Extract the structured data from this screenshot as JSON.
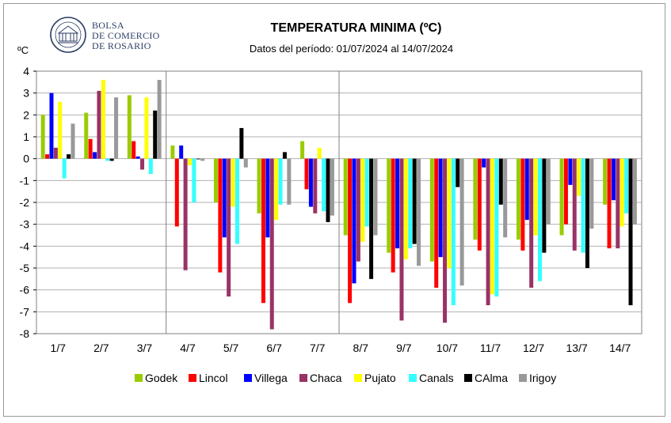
{
  "logo": {
    "line1": "BOLSA",
    "line2": "DE COMERCIO",
    "line3": "DE ROSARIO"
  },
  "chart_data": {
    "type": "bar",
    "title": "TEMPERATURA MINIMA (ºC)",
    "subtitle": "Datos del período: 01/07/2024 al 14/07/2024",
    "ylabel": "ºC",
    "xlabel": "",
    "ylim": [
      -8,
      4
    ],
    "yticks": [
      4,
      3,
      2,
      1,
      0,
      -1,
      -2,
      -3,
      -4,
      -5,
      -6,
      -7,
      -8
    ],
    "grid": true,
    "legend_position": "bottom",
    "categories": [
      "1/7",
      "2/7",
      "3/7",
      "4/7",
      "5/7",
      "6/7",
      "7/7",
      "8/7",
      "9/7",
      "10/7",
      "11/7",
      "12/7",
      "13/7",
      "14/7"
    ],
    "series": [
      {
        "name": "Godek",
        "color": "#99cc00",
        "values": [
          2.0,
          2.1,
          2.9,
          0.6,
          -2.0,
          -2.5,
          0.8,
          -3.5,
          -4.3,
          -4.7,
          -3.7,
          -3.7,
          -3.5,
          -2.1
        ]
      },
      {
        "name": "Lincol",
        "color": "#ff0000",
        "values": [
          0.2,
          0.9,
          0.8,
          -3.1,
          -5.2,
          -6.6,
          -1.4,
          -6.6,
          -5.2,
          -5.9,
          -4.2,
          -4.2,
          -3.0,
          -4.1
        ]
      },
      {
        "name": "Villega",
        "color": "#0000ff",
        "values": [
          3.0,
          0.3,
          0.1,
          0.6,
          -3.6,
          -3.6,
          -2.2,
          -5.7,
          -4.1,
          -4.5,
          -0.4,
          -2.8,
          -1.2,
          -1.9
        ]
      },
      {
        "name": "Chaca",
        "color": "#993366",
        "values": [
          0.5,
          3.1,
          -0.5,
          -5.1,
          -6.3,
          -7.8,
          -2.5,
          -4.7,
          -7.4,
          -7.5,
          -6.7,
          -5.9,
          -4.2,
          -4.1
        ]
      },
      {
        "name": "Pujato",
        "color": "#ffff00",
        "values": [
          2.6,
          3.6,
          2.8,
          -0.3,
          -2.2,
          -2.8,
          0.5,
          -3.8,
          -4.6,
          -5.0,
          -6.2,
          -3.5,
          -1.7,
          -3.1
        ]
      },
      {
        "name": "Canals",
        "color": "#33ffff",
        "values": [
          -0.9,
          -0.1,
          -0.7,
          -2.0,
          -3.9,
          -2.1,
          -2.4,
          -3.1,
          -4.1,
          -6.7,
          -6.3,
          -5.6,
          -4.3,
          -2.5
        ]
      },
      {
        "name": "CAlma",
        "color": "#000000",
        "values": [
          0.2,
          -0.1,
          2.2,
          0.0,
          1.4,
          0.3,
          -2.9,
          -5.5,
          -3.9,
          -1.3,
          -2.1,
          -4.3,
          -5.0,
          -6.7
        ]
      },
      {
        "name": "Irigoy",
        "color": "#999999",
        "values": [
          1.6,
          2.8,
          3.6,
          -0.1,
          -0.4,
          -2.1,
          -2.6,
          -3.5,
          -4.9,
          -5.8,
          -3.6,
          -3.0,
          -3.2,
          -3.0
        ]
      }
    ]
  }
}
